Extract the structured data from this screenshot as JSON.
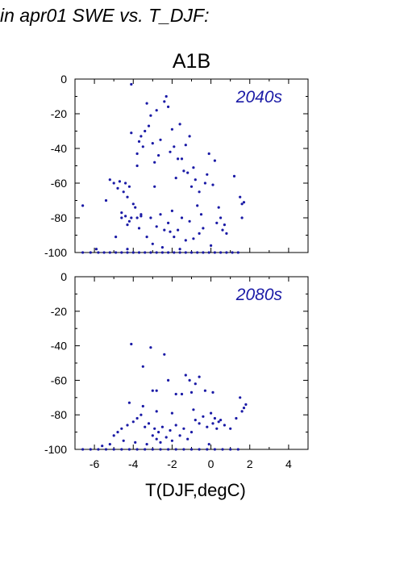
{
  "figure": {
    "title": "in apr01 SWE vs. T_DJF:"
  },
  "colors": {
    "points": "#1a1aa6",
    "label": "#1a1aa6",
    "axis": "#000000"
  },
  "chart_data": [
    {
      "type": "scatter",
      "title": "A1B",
      "annotation": "2040s",
      "xlabel": "T(DJF,degC)",
      "ylabel": "",
      "xlim": [
        -7,
        5
      ],
      "ylim": [
        -100,
        0
      ],
      "xticks": [
        "-6",
        "-4",
        "-2",
        "0",
        "2",
        "4"
      ],
      "yticks": [
        "0",
        "-20",
        "-40",
        "-60",
        "-80",
        "-100"
      ],
      "points": [
        [
          -4.1,
          -3
        ],
        [
          -6.6,
          -73
        ],
        [
          -5.4,
          -70
        ],
        [
          -5.2,
          -58
        ],
        [
          -5.0,
          -60
        ],
        [
          -4.8,
          -63
        ],
        [
          -4.7,
          -59
        ],
        [
          -4.6,
          -77
        ],
        [
          -4.5,
          -65
        ],
        [
          -4.4,
          -60
        ],
        [
          -4.3,
          -68
        ],
        [
          -4.2,
          -62
        ],
        [
          -4.6,
          -80
        ],
        [
          -4.4,
          -79
        ],
        [
          -4.3,
          -84
        ],
        [
          -4.2,
          -82
        ],
        [
          -4.1,
          -80
        ],
        [
          -4.0,
          -72
        ],
        [
          -3.9,
          -74
        ],
        [
          -3.8,
          -80
        ],
        [
          -3.7,
          -86
        ],
        [
          -3.6,
          -78
        ],
        [
          -4.9,
          -91
        ],
        [
          -4.1,
          -31
        ],
        [
          -3.8,
          -43
        ],
        [
          -3.8,
          -50
        ],
        [
          -3.7,
          -36
        ],
        [
          -3.6,
          -33
        ],
        [
          -3.5,
          -39
        ],
        [
          -3.4,
          -30
        ],
        [
          -3.3,
          -14
        ],
        [
          -3.2,
          -27
        ],
        [
          -3.1,
          -21
        ],
        [
          -3.0,
          -37
        ],
        [
          -2.9,
          -48
        ],
        [
          -2.8,
          -18
        ],
        [
          -2.7,
          -44
        ],
        [
          -2.6,
          -35
        ],
        [
          -2.4,
          -13
        ],
        [
          -2.3,
          -10
        ],
        [
          -2.2,
          -16
        ],
        [
          -2.1,
          -42
        ],
        [
          -2.0,
          -29
        ],
        [
          -1.9,
          -39
        ],
        [
          -1.8,
          -57
        ],
        [
          -1.7,
          -46
        ],
        [
          -1.6,
          -26
        ],
        [
          -1.5,
          -46
        ],
        [
          -1.4,
          -53
        ],
        [
          -1.3,
          -38
        ],
        [
          -1.2,
          -54
        ],
        [
          -1.1,
          -33
        ],
        [
          -1.0,
          -62
        ],
        [
          -0.9,
          -51
        ],
        [
          -0.8,
          -58
        ],
        [
          -0.7,
          -73
        ],
        [
          -0.6,
          -65
        ],
        [
          -0.5,
          -78
        ],
        [
          -0.4,
          -86
        ],
        [
          -0.3,
          -60
        ],
        [
          -0.2,
          -55
        ],
        [
          -0.1,
          -43
        ],
        [
          0.1,
          -61
        ],
        [
          0.2,
          -47
        ],
        [
          0.3,
          -83
        ],
        [
          0.4,
          -74
        ],
        [
          0.5,
          -80
        ],
        [
          0.6,
          -87
        ],
        [
          0.7,
          -84
        ],
        [
          0.8,
          -89
        ],
        [
          1.2,
          -56
        ],
        [
          1.5,
          -68
        ],
        [
          1.6,
          -72
        ],
        [
          1.7,
          -71
        ],
        [
          1.6,
          -80
        ],
        [
          -3.6,
          -79
        ],
        [
          -3.3,
          -91
        ],
        [
          -3.1,
          -80
        ],
        [
          -2.9,
          -62
        ],
        [
          -2.8,
          -85
        ],
        [
          -2.6,
          -78
        ],
        [
          -2.4,
          -87
        ],
        [
          -2.2,
          -83
        ],
        [
          -2.1,
          -88
        ],
        [
          -2.0,
          -76
        ],
        [
          -1.9,
          -91
        ],
        [
          -1.7,
          -87
        ],
        [
          -1.5,
          -80
        ],
        [
          -1.3,
          -93
        ],
        [
          -1.1,
          -82
        ],
        [
          -0.9,
          -92
        ],
        [
          -0.6,
          -89
        ],
        [
          -3.0,
          -95
        ],
        [
          -2.5,
          -97
        ],
        [
          -1.6,
          -98
        ],
        [
          -4.3,
          -98
        ],
        [
          -5.9,
          -98
        ],
        [
          0.0,
          -96
        ],
        [
          -6.6,
          -100
        ],
        [
          -6.2,
          -100
        ],
        [
          -5.8,
          -100
        ],
        [
          -5.5,
          -100
        ],
        [
          -5.2,
          -100
        ],
        [
          -4.9,
          -100
        ],
        [
          -4.6,
          -100
        ],
        [
          -4.3,
          -100
        ],
        [
          -4.0,
          -100
        ],
        [
          -3.7,
          -100
        ],
        [
          -3.4,
          -100
        ],
        [
          -3.1,
          -100
        ],
        [
          -2.8,
          -100
        ],
        [
          -2.5,
          -100
        ],
        [
          -2.2,
          -100
        ],
        [
          -1.9,
          -100
        ],
        [
          -1.6,
          -100
        ],
        [
          -1.3,
          -100
        ],
        [
          -1.0,
          -100
        ],
        [
          -0.7,
          -100
        ],
        [
          -0.4,
          -100
        ],
        [
          -0.1,
          -100
        ],
        [
          0.2,
          -100
        ],
        [
          0.5,
          -100
        ],
        [
          0.8,
          -100
        ],
        [
          1.1,
          -100
        ],
        [
          1.4,
          -100
        ]
      ]
    },
    {
      "type": "scatter",
      "title": "",
      "annotation": "2080s",
      "xlabel": "T(DJF,degC)",
      "ylabel": "",
      "xlim": [
        -7,
        5
      ],
      "ylim": [
        -100,
        0
      ],
      "xticks": [
        "-6",
        "-4",
        "-2",
        "0",
        "2",
        "4"
      ],
      "yticks": [
        "0",
        "-20",
        "-40",
        "-60",
        "-80",
        "-100"
      ],
      "points": [
        [
          -4.1,
          -39
        ],
        [
          -3.1,
          -41
        ],
        [
          -2.4,
          -45
        ],
        [
          -3.5,
          -52
        ],
        [
          -2.2,
          -60
        ],
        [
          -1.3,
          -57
        ],
        [
          -0.6,
          -58
        ],
        [
          -1.1,
          -60
        ],
        [
          -0.8,
          -62
        ],
        [
          -2.8,
          -66
        ],
        [
          -3.0,
          -66
        ],
        [
          -1.8,
          -68
        ],
        [
          -1.5,
          -68
        ],
        [
          -1.0,
          -67
        ],
        [
          -0.3,
          -66
        ],
        [
          0.1,
          -67
        ],
        [
          -4.2,
          -73
        ],
        [
          -3.5,
          -75
        ],
        [
          -2.8,
          -78
        ],
        [
          -2.0,
          -79
        ],
        [
          -0.9,
          -77
        ],
        [
          -4.6,
          -88
        ],
        [
          -4.3,
          -86
        ],
        [
          -4.0,
          -84
        ],
        [
          -3.8,
          -82
        ],
        [
          -3.6,
          -80
        ],
        [
          -3.4,
          -87
        ],
        [
          -3.2,
          -85
        ],
        [
          -3.0,
          -92
        ],
        [
          -2.9,
          -88
        ],
        [
          -2.8,
          -94
        ],
        [
          -2.7,
          -90
        ],
        [
          -2.6,
          -96
        ],
        [
          -2.5,
          -87
        ],
        [
          -2.3,
          -93
        ],
        [
          -2.1,
          -89
        ],
        [
          -2.0,
          -95
        ],
        [
          -1.8,
          -86
        ],
        [
          -1.6,
          -92
        ],
        [
          -1.4,
          -88
        ],
        [
          -1.2,
          -94
        ],
        [
          -1.0,
          -90
        ],
        [
          -0.8,
          -83
        ],
        [
          -0.6,
          -85
        ],
        [
          -0.4,
          -81
        ],
        [
          -0.2,
          -87
        ],
        [
          0.0,
          -79
        ],
        [
          0.1,
          -85
        ],
        [
          0.2,
          -82
        ],
        [
          0.3,
          -88
        ],
        [
          0.4,
          -84
        ],
        [
          0.5,
          -83
        ],
        [
          0.7,
          -86
        ],
        [
          1.0,
          -88
        ],
        [
          1.3,
          -82
        ],
        [
          1.5,
          -70
        ],
        [
          1.6,
          -78
        ],
        [
          1.7,
          -76
        ],
        [
          1.8,
          -74
        ],
        [
          -5.0,
          -92
        ],
        [
          -4.8,
          -90
        ],
        [
          -4.5,
          -95
        ],
        [
          -3.9,
          -96
        ],
        [
          -3.3,
          -97
        ],
        [
          -5.6,
          -98
        ],
        [
          -5.2,
          -97
        ],
        [
          -0.1,
          -97
        ],
        [
          -6.6,
          -100
        ],
        [
          -6.2,
          -100
        ],
        [
          -5.8,
          -100
        ],
        [
          -5.4,
          -100
        ],
        [
          -5.0,
          -100
        ],
        [
          -4.6,
          -100
        ],
        [
          -4.2,
          -100
        ],
        [
          -3.8,
          -100
        ],
        [
          -3.4,
          -100
        ],
        [
          -3.0,
          -100
        ],
        [
          -2.6,
          -100
        ],
        [
          -2.2,
          -100
        ],
        [
          -1.8,
          -100
        ],
        [
          -1.4,
          -100
        ],
        [
          -1.0,
          -100
        ],
        [
          -0.6,
          -100
        ],
        [
          -0.2,
          -100
        ],
        [
          0.2,
          -100
        ],
        [
          0.6,
          -100
        ],
        [
          1.0,
          -100
        ],
        [
          1.4,
          -100
        ]
      ]
    }
  ]
}
